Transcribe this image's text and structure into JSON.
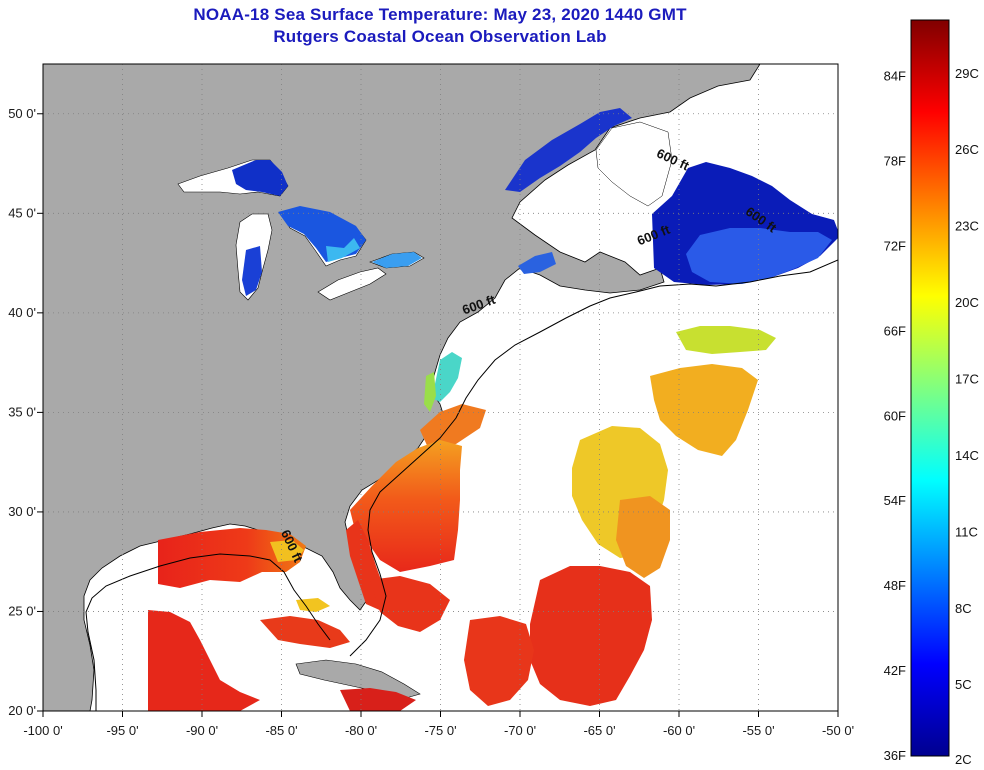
{
  "title": {
    "line1": "NOAA-18 Sea Surface Temperature:  May 23, 2020 1440 GMT",
    "line2": "Rutgers Coastal Ocean Observation Lab"
  },
  "map": {
    "lon_range": [
      -100,
      -50
    ],
    "lat_range": [
      20,
      52.5
    ],
    "lon_ticks": [
      {
        "value": -100,
        "label": "-100 0'"
      },
      {
        "value": -95,
        "label": "-95 0'"
      },
      {
        "value": -90,
        "label": "-90 0'"
      },
      {
        "value": -85,
        "label": "-85 0'"
      },
      {
        "value": -80,
        "label": "-80 0'"
      },
      {
        "value": -75,
        "label": "-75 0'"
      },
      {
        "value": -70,
        "label": "-70 0'"
      },
      {
        "value": -65,
        "label": "-65 0'"
      },
      {
        "value": -60,
        "label": "-60 0'"
      },
      {
        "value": -55,
        "label": "-55 0'"
      },
      {
        "value": -50,
        "label": "-50 0'"
      }
    ],
    "lat_ticks": [
      {
        "value": 20,
        "label": "20 0'"
      },
      {
        "value": 25,
        "label": "25 0'"
      },
      {
        "value": 30,
        "label": "30 0'"
      },
      {
        "value": 35,
        "label": "35 0'"
      },
      {
        "value": 40,
        "label": "40 0'"
      },
      {
        "value": 45,
        "label": "45 0'"
      },
      {
        "value": 50,
        "label": "50 0'"
      }
    ],
    "contour_labels": [
      {
        "text": "600 ft",
        "lon": -60.5,
        "lat": 47.5,
        "angle": 25
      },
      {
        "text": "600 ft",
        "lon": -55,
        "lat": 44.5,
        "angle": 35
      },
      {
        "text": "600 ft",
        "lon": -61.5,
        "lat": 43.7,
        "angle": -22
      },
      {
        "text": "600 ft",
        "lon": -72.5,
        "lat": 40.2,
        "angle": -20
      },
      {
        "text": "600 ft",
        "lon": -84.6,
        "lat": 28.2,
        "angle": 65
      }
    ],
    "colors": {
      "land": "#a9a9a9",
      "ocean_nodata": "#ffffff",
      "grid": "#7f7f7f",
      "coast": "#000000"
    }
  },
  "colorbar": {
    "min_f": 36,
    "max_f": 88,
    "fahrenheit": [
      {
        "value": 36,
        "label": "36F"
      },
      {
        "value": 42,
        "label": "42F"
      },
      {
        "value": 48,
        "label": "48F"
      },
      {
        "value": 54,
        "label": "54F"
      },
      {
        "value": 60,
        "label": "60F"
      },
      {
        "value": 66,
        "label": "66F"
      },
      {
        "value": 72,
        "label": "72F"
      },
      {
        "value": 78,
        "label": "78F"
      },
      {
        "value": 84,
        "label": "84F"
      }
    ],
    "celsius": [
      {
        "value": 2,
        "label": "2C"
      },
      {
        "value": 5,
        "label": "5C"
      },
      {
        "value": 8,
        "label": "8C"
      },
      {
        "value": 11,
        "label": "11C"
      },
      {
        "value": 14,
        "label": "14C"
      },
      {
        "value": 17,
        "label": "17C"
      },
      {
        "value": 20,
        "label": "20C"
      },
      {
        "value": 23,
        "label": "23C"
      },
      {
        "value": 26,
        "label": "26C"
      },
      {
        "value": 29,
        "label": "29C"
      }
    ],
    "stops": [
      "#00008f",
      "#0000ff",
      "#0080ff",
      "#00ffff",
      "#80ff80",
      "#ffff00",
      "#ff8000",
      "#ff0000",
      "#800000"
    ]
  }
}
